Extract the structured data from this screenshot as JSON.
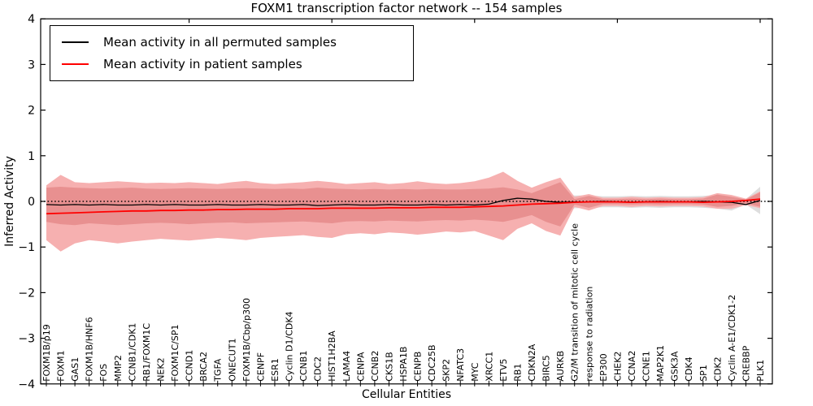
{
  "figure": {
    "title": "FOXM1 transcription factor network -- 154 samples",
    "xlabel": "Cellular Entities",
    "ylabel": "Inferred Activity"
  },
  "legend": {
    "entries": [
      {
        "label": "Mean activity in all permuted samples",
        "color": "#000000"
      },
      {
        "label": "Mean activity in patient samples",
        "color": "#ff0000"
      }
    ]
  },
  "chart_data": {
    "type": "line",
    "title": "FOXM1 transcription factor network -- 154 samples",
    "xlabel": "Cellular Entities",
    "ylabel": "Inferred Activity",
    "ylim": [
      -4,
      4
    ],
    "yticks": [
      4,
      3,
      2,
      1,
      0,
      -1,
      -2,
      -3,
      -4
    ],
    "top_tick_indices": [
      10,
      20,
      30,
      40,
      50
    ],
    "grid": false,
    "legend_position": "upper left",
    "zero_line": 0,
    "categories": [
      "FOXM1B/p19",
      "FOXM1",
      "GAS1",
      "FOXM1B/HNF6",
      "FOS",
      "MMP2",
      "CCNB1/CDK1",
      "RB1/FOXM1C",
      "NEK2",
      "FOXM1C/SP1",
      "CCND1",
      "BRCA2",
      "TGFA",
      "ONECUT1",
      "FOXM1B/Cbp/p300",
      "CENPF",
      "ESR1",
      "Cyclin D1/CDK4",
      "CCNB1",
      "CDC2",
      "HIST1H2BA",
      "LAMA4",
      "CENPA",
      "CCNB2",
      "CKS1B",
      "HSPA1B",
      "CENPB",
      "CDC25B",
      "SKP2",
      "NFATC3",
      "MYC",
      "XRCC1",
      "ETV5",
      "RB1",
      "CDKN2A",
      "BIRC5",
      "AURKB",
      "G2/M transition of mitotic cell cycle",
      "response to radiation",
      "EP300",
      "CHEK2",
      "CCNA2",
      "CCNE1",
      "MAP2K1",
      "GSK3A",
      "CDK4",
      "SP1",
      "CDK2",
      "Cyclin A-E1/CDK1-2",
      "CREBBP",
      "PLK1"
    ],
    "series": [
      {
        "name": "Mean activity in all permuted samples",
        "color": "#000000",
        "width": 1.3,
        "values": [
          -0.07,
          -0.08,
          -0.07,
          -0.08,
          -0.07,
          -0.08,
          -0.08,
          -0.07,
          -0.08,
          -0.07,
          -0.08,
          -0.08,
          -0.07,
          -0.08,
          -0.08,
          -0.07,
          -0.08,
          -0.08,
          -0.07,
          -0.09,
          -0.08,
          -0.07,
          -0.08,
          -0.08,
          -0.07,
          -0.08,
          -0.08,
          -0.07,
          -0.08,
          -0.07,
          -0.08,
          -0.06,
          0.02,
          0.07,
          0.05,
          0.0,
          -0.02,
          -0.01,
          -0.01,
          0.0,
          -0.01,
          -0.02,
          -0.01,
          0.0,
          -0.01,
          -0.01,
          0.0,
          -0.01,
          -0.02,
          -0.07,
          0.02
        ]
      },
      {
        "name": "Mean activity in patient samples",
        "color": "#ff0000",
        "width": 1.8,
        "values": [
          -0.27,
          -0.26,
          -0.25,
          -0.24,
          -0.23,
          -0.22,
          -0.21,
          -0.21,
          -0.2,
          -0.2,
          -0.19,
          -0.19,
          -0.18,
          -0.18,
          -0.17,
          -0.17,
          -0.17,
          -0.16,
          -0.16,
          -0.16,
          -0.15,
          -0.15,
          -0.15,
          -0.15,
          -0.14,
          -0.14,
          -0.14,
          -0.13,
          -0.13,
          -0.13,
          -0.12,
          -0.11,
          -0.1,
          -0.08,
          -0.06,
          -0.05,
          -0.04,
          -0.02,
          -0.01,
          -0.01,
          -0.01,
          -0.02,
          -0.01,
          -0.01,
          -0.01,
          -0.01,
          -0.02,
          -0.01,
          0.0,
          0.02,
          0.05
        ]
      }
    ],
    "bands": [
      {
        "name": "permuted-std-band",
        "color": "#dedede",
        "upper": [
          0.24,
          0.26,
          0.25,
          0.24,
          0.25,
          0.26,
          0.25,
          0.24,
          0.24,
          0.25,
          0.26,
          0.25,
          0.24,
          0.25,
          0.26,
          0.25,
          0.24,
          0.25,
          0.24,
          0.26,
          0.25,
          0.24,
          0.24,
          0.25,
          0.24,
          0.25,
          0.24,
          0.25,
          0.24,
          0.24,
          0.25,
          0.28,
          0.32,
          0.24,
          0.18,
          0.22,
          0.18,
          0.13,
          0.13,
          0.11,
          0.11,
          0.12,
          0.11,
          0.12,
          0.11,
          0.11,
          0.12,
          0.14,
          0.12,
          0.05,
          0.32
        ],
        "lower": [
          -0.38,
          -0.4,
          -0.39,
          -0.38,
          -0.39,
          -0.4,
          -0.39,
          -0.38,
          -0.38,
          -0.39,
          -0.4,
          -0.39,
          -0.38,
          -0.39,
          -0.4,
          -0.39,
          -0.38,
          -0.39,
          -0.38,
          -0.4,
          -0.39,
          -0.38,
          -0.38,
          -0.39,
          -0.38,
          -0.39,
          -0.38,
          -0.39,
          -0.38,
          -0.38,
          -0.39,
          -0.42,
          -0.48,
          -0.5,
          -0.42,
          -0.36,
          -0.32,
          -0.15,
          -0.15,
          -0.13,
          -0.13,
          -0.14,
          -0.13,
          -0.14,
          -0.13,
          -0.13,
          -0.14,
          -0.16,
          -0.2,
          -0.07,
          -0.28
        ]
      },
      {
        "name": "patient-minmax-band",
        "color": "#f6b0b0",
        "upper": [
          0.35,
          0.58,
          0.42,
          0.4,
          0.42,
          0.44,
          0.42,
          0.4,
          0.41,
          0.4,
          0.42,
          0.4,
          0.38,
          0.42,
          0.45,
          0.4,
          0.38,
          0.4,
          0.42,
          0.45,
          0.42,
          0.38,
          0.4,
          0.42,
          0.38,
          0.4,
          0.44,
          0.4,
          0.38,
          0.4,
          0.44,
          0.52,
          0.65,
          0.45,
          0.3,
          0.42,
          0.52,
          0.1,
          0.16,
          0.08,
          0.08,
          0.1,
          0.08,
          0.09,
          0.08,
          0.08,
          0.09,
          0.18,
          0.14,
          0.06,
          0.22
        ],
        "lower": [
          -0.85,
          -1.1,
          -0.92,
          -0.85,
          -0.88,
          -0.92,
          -0.88,
          -0.85,
          -0.82,
          -0.84,
          -0.86,
          -0.83,
          -0.8,
          -0.82,
          -0.85,
          -0.8,
          -0.78,
          -0.76,
          -0.74,
          -0.78,
          -0.8,
          -0.72,
          -0.7,
          -0.72,
          -0.68,
          -0.7,
          -0.73,
          -0.7,
          -0.66,
          -0.68,
          -0.65,
          -0.75,
          -0.85,
          -0.6,
          -0.48,
          -0.65,
          -0.75,
          -0.12,
          -0.2,
          -0.1,
          -0.1,
          -0.12,
          -0.1,
          -0.11,
          -0.1,
          -0.1,
          -0.11,
          -0.16,
          -0.16,
          -0.08,
          -0.15
        ]
      },
      {
        "name": "patient-std-band",
        "color": "#e89090",
        "upper": [
          0.3,
          0.32,
          0.3,
          0.29,
          0.28,
          0.29,
          0.3,
          0.28,
          0.27,
          0.28,
          0.29,
          0.28,
          0.27,
          0.28,
          0.29,
          0.28,
          0.27,
          0.28,
          0.27,
          0.3,
          0.28,
          0.27,
          0.26,
          0.27,
          0.26,
          0.27,
          0.26,
          0.27,
          0.26,
          0.26,
          0.27,
          0.28,
          0.31,
          0.26,
          0.18,
          0.3,
          0.42,
          0.05,
          0.12,
          0.05,
          0.05,
          0.06,
          0.05,
          0.06,
          0.05,
          0.05,
          0.06,
          0.15,
          0.1,
          0.04,
          0.2
        ],
        "lower": [
          -0.45,
          -0.5,
          -0.52,
          -0.48,
          -0.5,
          -0.52,
          -0.5,
          -0.48,
          -0.47,
          -0.48,
          -0.5,
          -0.48,
          -0.47,
          -0.46,
          -0.48,
          -0.47,
          -0.46,
          -0.45,
          -0.44,
          -0.46,
          -0.48,
          -0.44,
          -0.43,
          -0.44,
          -0.42,
          -0.43,
          -0.44,
          -0.42,
          -0.41,
          -0.42,
          -0.4,
          -0.42,
          -0.45,
          -0.38,
          -0.3,
          -0.45,
          -0.55,
          -0.07,
          -0.14,
          -0.06,
          -0.06,
          -0.07,
          -0.06,
          -0.07,
          -0.06,
          -0.06,
          -0.07,
          -0.12,
          -0.1,
          -0.04,
          -0.12
        ]
      }
    ]
  }
}
